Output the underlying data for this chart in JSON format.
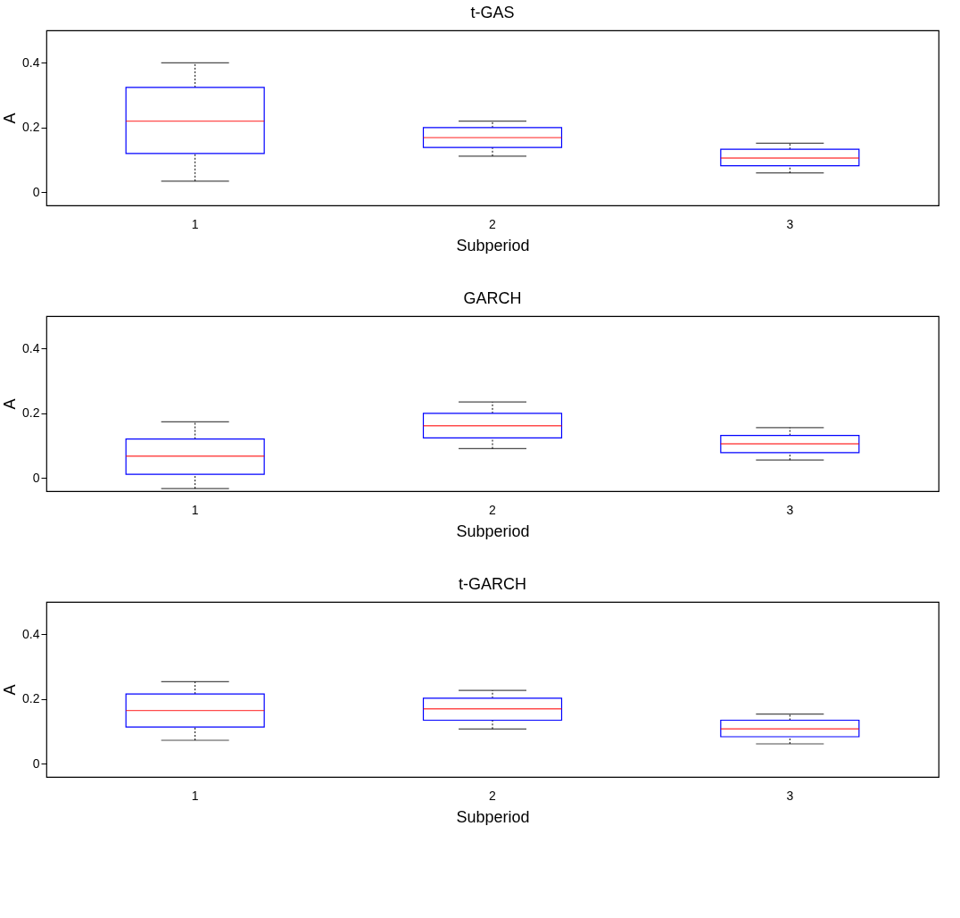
{
  "chart_data": [
    {
      "type": "box",
      "title": "t-GAS",
      "xlabel": "Subperiod",
      "ylabel": "A",
      "categories": [
        "1",
        "2",
        "3"
      ],
      "ylim": [
        -0.04,
        0.5
      ],
      "yticks": [
        0,
        0.2,
        0.4
      ],
      "series": [
        {
          "color": "#0000ff",
          "boxes": [
            {
              "low": 0.035,
              "q1": 0.12,
              "median": 0.22,
              "q3": 0.324,
              "high": 0.4
            },
            {
              "low": 0.112,
              "q1": 0.139,
              "median": 0.169,
              "q3": 0.2,
              "high": 0.22
            },
            {
              "low": 0.06,
              "q1": 0.082,
              "median": 0.106,
              "q3": 0.133,
              "high": 0.152
            }
          ]
        }
      ]
    },
    {
      "type": "box",
      "title": "GARCH",
      "xlabel": "Subperiod",
      "ylabel": "A",
      "categories": [
        "1",
        "2",
        "3"
      ],
      "ylim": [
        -0.04,
        0.5
      ],
      "yticks": [
        0,
        0.2,
        0.4
      ],
      "series": [
        {
          "color": "#0000ff",
          "boxes": [
            {
              "low": -0.032,
              "q1": 0.012,
              "median": 0.068,
              "q3": 0.121,
              "high": 0.174
            },
            {
              "low": 0.091,
              "q1": 0.124,
              "median": 0.162,
              "q3": 0.2,
              "high": 0.235
            },
            {
              "low": 0.056,
              "q1": 0.079,
              "median": 0.106,
              "q3": 0.132,
              "high": 0.156
            }
          ]
        }
      ]
    },
    {
      "type": "box",
      "title": "t-GARCH",
      "xlabel": "Subperiod",
      "ylabel": "A",
      "categories": [
        "1",
        "2",
        "3"
      ],
      "ylim": [
        -0.04,
        0.5
      ],
      "yticks": [
        0,
        0.2,
        0.4
      ],
      "series": [
        {
          "color": "#0000ff",
          "boxes": [
            {
              "low": 0.073,
              "q1": 0.114,
              "median": 0.165,
              "q3": 0.216,
              "high": 0.254
            },
            {
              "low": 0.108,
              "q1": 0.135,
              "median": 0.17,
              "q3": 0.203,
              "high": 0.227
            },
            {
              "low": 0.062,
              "q1": 0.084,
              "median": 0.108,
              "q3": 0.135,
              "high": 0.154
            }
          ]
        }
      ]
    }
  ]
}
